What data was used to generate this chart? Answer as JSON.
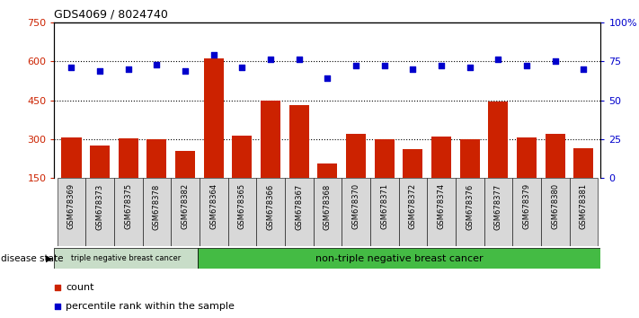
{
  "title": "GDS4069 / 8024740",
  "samples": [
    "GSM678369",
    "GSM678373",
    "GSM678375",
    "GSM678378",
    "GSM678382",
    "GSM678364",
    "GSM678365",
    "GSM678366",
    "GSM678367",
    "GSM678368",
    "GSM678370",
    "GSM678371",
    "GSM678372",
    "GSM678374",
    "GSM678376",
    "GSM678377",
    "GSM678379",
    "GSM678380",
    "GSM678381"
  ],
  "counts": [
    305,
    275,
    302,
    300,
    255,
    610,
    315,
    450,
    430,
    205,
    320,
    300,
    260,
    310,
    300,
    445,
    305,
    320,
    265
  ],
  "percentiles": [
    71,
    69,
    70,
    73,
    69,
    79,
    71,
    76,
    76,
    64,
    72,
    72,
    70,
    72,
    71,
    76,
    72,
    75,
    70
  ],
  "triple_neg_count": 5,
  "ylim_left": [
    150,
    750
  ],
  "ylim_right": [
    0,
    100
  ],
  "yticks_left": [
    150,
    300,
    450,
    600,
    750
  ],
  "yticks_right": [
    0,
    25,
    50,
    75,
    100
  ],
  "bar_color": "#cc2200",
  "dot_color": "#0000cc",
  "bg_plot": "#ffffff",
  "bg_xticklabels": "#d8d8d8",
  "bg_triple": "#c8ddc8",
  "bg_nontriple": "#44bb44",
  "hline_vals": [
    300,
    450,
    600
  ],
  "disease_state_label": "disease state",
  "triple_label": "triple negative breast cancer",
  "nontriple_label": "non-triple negative breast cancer",
  "legend_count": "count",
  "legend_pct": "percentile rank within the sample"
}
